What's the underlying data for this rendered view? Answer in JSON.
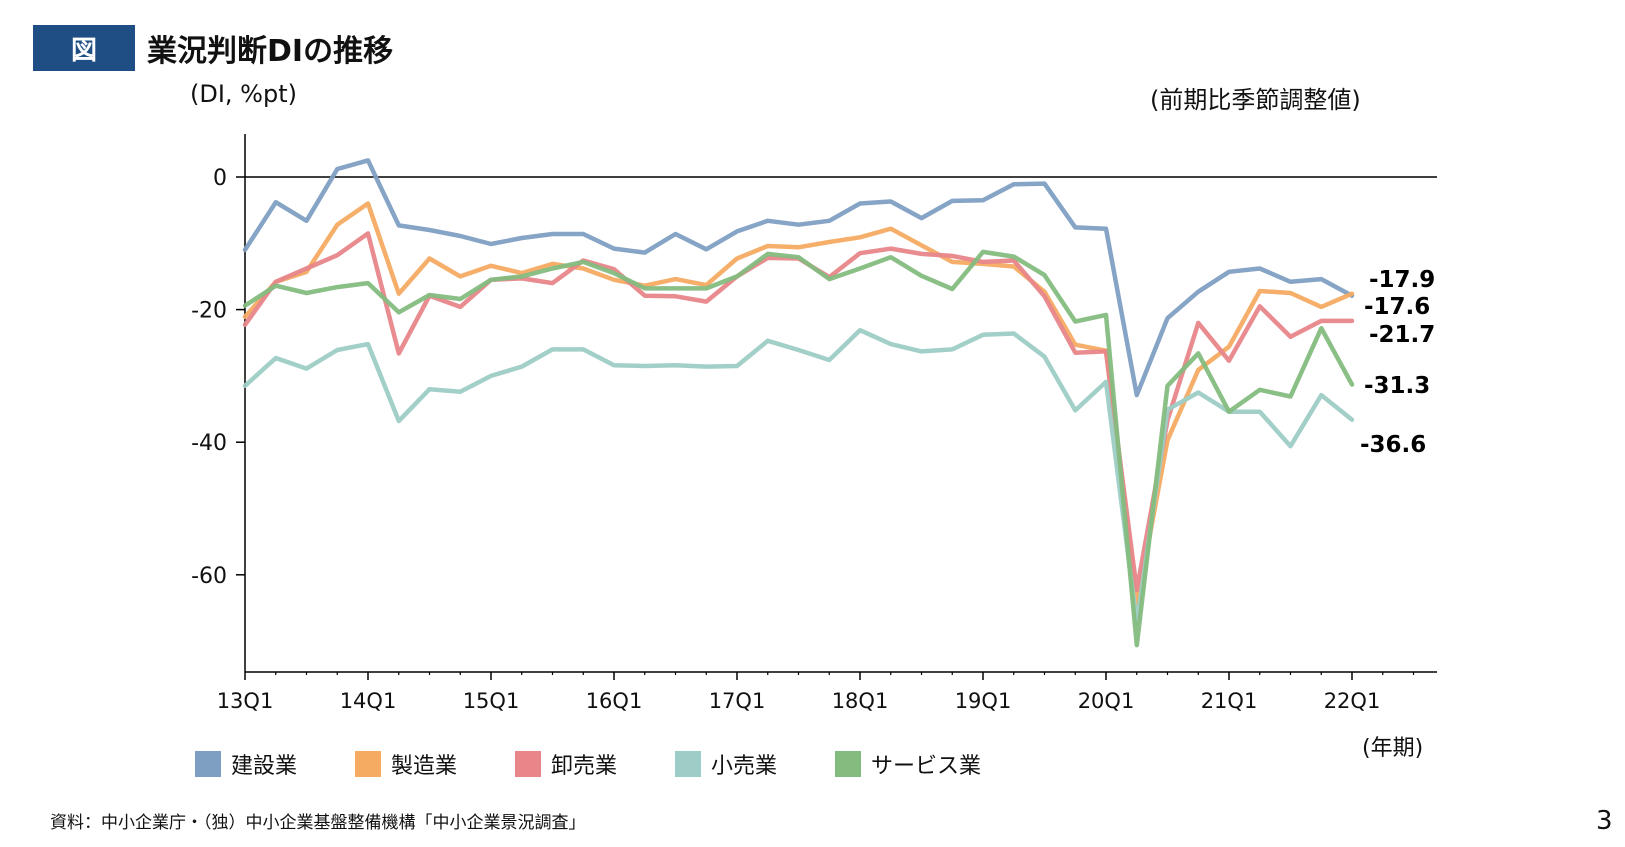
{
  "header": {
    "badge": "図",
    "title": "業況判断DIの推移",
    "unit_left": "(DI, %pt)",
    "unit_right": "(前期比季節調整値)"
  },
  "footer": {
    "source": "資料：中小企業庁・（独）中小企業基盤整備機構「中小企業景況調査」",
    "page_number": "3"
  },
  "colors": {
    "construction": "#7f9fc2",
    "manufacturing": "#f5ab62",
    "wholesale": "#e8868a",
    "retail": "#9dcdc6",
    "services": "#84bc7f"
  },
  "chart_data": {
    "type": "line",
    "title": "業況判断DIの推移",
    "subtitle": "(前期比季節調整値)",
    "xlabel": "(年期)",
    "ylabel": "(DI, %pt)",
    "ylim": [
      -75,
      6
    ],
    "yticks": [
      0,
      -20,
      -40,
      -60
    ],
    "grid": false,
    "legend_position": "bottom",
    "x": [
      "13Q1",
      "13Q2",
      "13Q3",
      "13Q4",
      "14Q1",
      "14Q2",
      "14Q3",
      "14Q4",
      "15Q1",
      "15Q2",
      "15Q3",
      "15Q4",
      "16Q1",
      "16Q2",
      "16Q3",
      "16Q4",
      "17Q1",
      "17Q2",
      "17Q3",
      "17Q4",
      "18Q1",
      "18Q2",
      "18Q3",
      "18Q4",
      "19Q1",
      "19Q2",
      "19Q3",
      "19Q4",
      "20Q1",
      "20Q2",
      "20Q3",
      "20Q4",
      "21Q1",
      "21Q2",
      "21Q3",
      "21Q4",
      "22Q1"
    ],
    "xtick_labels": [
      "13Q1",
      "14Q1",
      "15Q1",
      "16Q1",
      "17Q1",
      "18Q1",
      "19Q1",
      "20Q1",
      "21Q1",
      "22Q1"
    ],
    "series": [
      {
        "name": "建設業",
        "color": "#7f9fc2",
        "end_label": "-17.9",
        "values": [
          -11.0,
          -3.8,
          -6.6,
          1.2,
          2.5,
          -7.3,
          -8.0,
          -8.9,
          -10.1,
          -9.2,
          -8.6,
          -8.6,
          -10.8,
          -11.4,
          -8.6,
          -10.9,
          -8.2,
          -6.6,
          -7.2,
          -6.6,
          -4.0,
          -3.7,
          -6.2,
          -3.6,
          -3.5,
          -1.1,
          -1.0,
          -7.6,
          -7.8,
          -32.9,
          -21.3,
          -17.3,
          -14.3,
          -13.8,
          -15.8,
          -15.4,
          -17.9
        ]
      },
      {
        "name": "製造業",
        "color": "#f5ab62",
        "end_label": "-17.6",
        "values": [
          -21.1,
          -15.8,
          -14.3,
          -7.2,
          -4.0,
          -17.6,
          -12.3,
          -15.0,
          -13.4,
          -14.5,
          -13.1,
          -13.8,
          -15.5,
          -16.4,
          -15.4,
          -16.3,
          -12.3,
          -10.4,
          -10.6,
          -9.8,
          -9.1,
          -7.8,
          -10.3,
          -12.8,
          -13.1,
          -13.5,
          -17.3,
          -25.3,
          -26.2,
          -64.6,
          -39.7,
          -29.1,
          -25.6,
          -17.2,
          -17.5,
          -19.6,
          -17.6
        ]
      },
      {
        "name": "卸売業",
        "color": "#e8868a",
        "end_label": "-21.7",
        "values": [
          -22.3,
          -15.8,
          -13.8,
          -11.8,
          -8.5,
          -26.6,
          -17.9,
          -19.6,
          -15.5,
          -15.3,
          -16.0,
          -12.6,
          -13.9,
          -17.9,
          -18.0,
          -18.8,
          -15.0,
          -12.2,
          -12.3,
          -15.1,
          -11.5,
          -10.8,
          -11.6,
          -11.9,
          -12.8,
          -12.6,
          -18.0,
          -26.5,
          -26.3,
          -62.3,
          -36.7,
          -22.0,
          -27.7,
          -19.5,
          -24.1,
          -21.7,
          -21.7
        ]
      },
      {
        "name": "小売業",
        "color": "#9dcdc6",
        "end_label": "-36.6",
        "values": [
          -31.5,
          -27.3,
          -28.9,
          -26.1,
          -25.2,
          -36.8,
          -32.0,
          -32.4,
          -30.0,
          -28.6,
          -26.0,
          -26.0,
          -28.4,
          -28.5,
          -28.4,
          -28.6,
          -28.5,
          -24.7,
          -26.1,
          -27.6,
          -23.1,
          -25.2,
          -26.3,
          -26.0,
          -23.8,
          -23.6,
          -27.1,
          -35.2,
          -30.9,
          -67.3,
          -35.1,
          -32.5,
          -35.4,
          -35.4,
          -40.6,
          -32.9,
          -36.6
        ]
      },
      {
        "name": "サービス業",
        "color": "#84bc7f",
        "end_label": "-31.3",
        "values": [
          -19.4,
          -16.4,
          -17.5,
          -16.6,
          -16.0,
          -20.4,
          -17.8,
          -18.4,
          -15.5,
          -15.0,
          -13.8,
          -12.8,
          -14.5,
          -16.8,
          -16.8,
          -16.8,
          -15.0,
          -11.6,
          -12.1,
          -15.4,
          -13.8,
          -12.1,
          -14.9,
          -16.9,
          -11.3,
          -12.0,
          -14.8,
          -21.8,
          -20.8,
          -70.6,
          -31.5,
          -26.6,
          -35.4,
          -32.1,
          -33.1,
          -22.8,
          -31.3
        ]
      }
    ]
  }
}
